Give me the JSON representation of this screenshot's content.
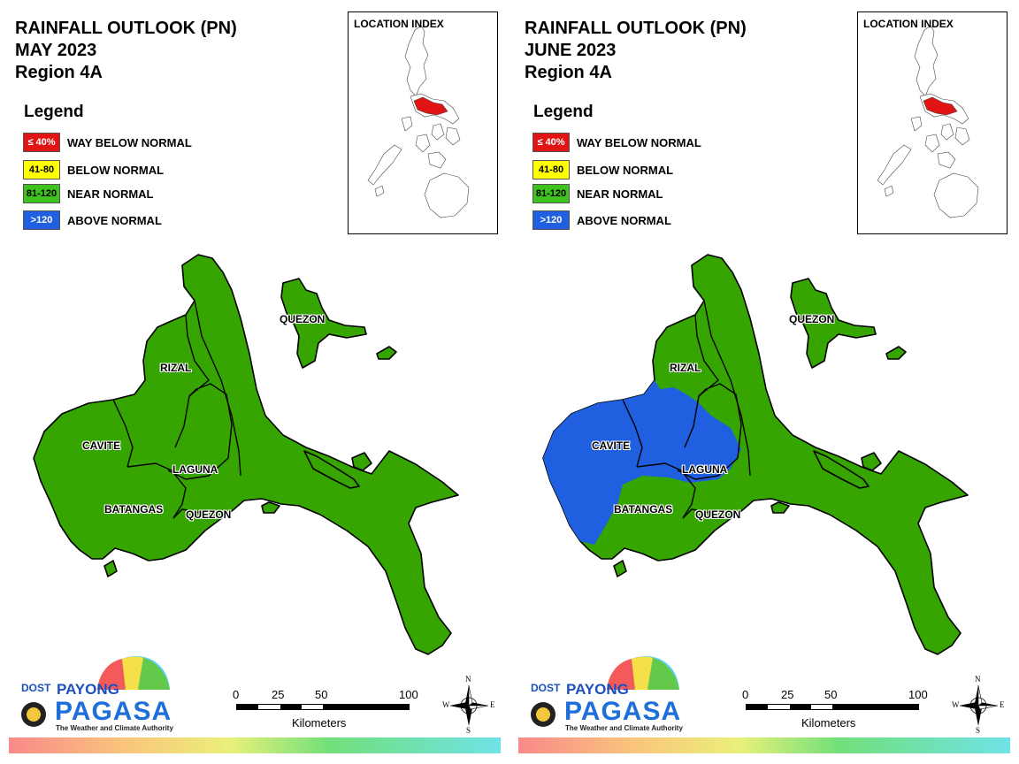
{
  "panels": [
    {
      "title_line1": "RAINFALL OUTLOOK (PN)",
      "title_line2": "MAY 2023",
      "title_line3": "Region 4A",
      "legend_title": "Legend",
      "legend": [
        {
          "box": "≤ 40%",
          "label": "WAY BELOW NORMAL",
          "color": "#e21313",
          "text_color": "#ffffff"
        },
        {
          "box": "41-80",
          "label": "BELOW NORMAL",
          "color": "#ffff00",
          "text_color": "#000000"
        },
        {
          "box": "81-120",
          "label": "NEAR NORMAL",
          "color": "#3ec21e",
          "text_color": "#000000"
        },
        {
          "box": ">120",
          "label": "ABOVE NORMAL",
          "color": "#1f5fe0",
          "text_color": "#ffffff"
        }
      ],
      "inset_title": "LOCATION INDEX",
      "provinces": {
        "quezon_north": "QUEZON",
        "rizal": "RIZAL",
        "cavite": "CAVITE",
        "laguna": "LAGUNA",
        "batangas": "BATANGAS",
        "quezon_south": "QUEZON"
      },
      "category_colors": {
        "base": "#36a502",
        "above_normal_area": "#36a502"
      },
      "logo": {
        "dost": "DOST",
        "payong": "PAYONG",
        "pagasa": "PAGASA",
        "tagline": "The Weather and Climate Authority"
      },
      "scale": {
        "ticks": [
          "0",
          "25",
          "50",
          "100"
        ],
        "units": "Kilometers"
      },
      "compass": {
        "n": "N",
        "s": "S",
        "e": "E",
        "w": "W"
      }
    },
    {
      "title_line1": "RAINFALL OUTLOOK (PN)",
      "title_line2": "JUNE 2023",
      "title_line3": "Region 4A",
      "legend_title": "Legend",
      "legend": [
        {
          "box": "≤ 40%",
          "label": "WAY BELOW NORMAL",
          "color": "#e21313",
          "text_color": "#ffffff"
        },
        {
          "box": "41-80",
          "label": "BELOW NORMAL",
          "color": "#ffff00",
          "text_color": "#000000"
        },
        {
          "box": "81-120",
          "label": "NEAR NORMAL",
          "color": "#3ec21e",
          "text_color": "#000000"
        },
        {
          "box": ">120",
          "label": "ABOVE NORMAL",
          "color": "#1f5fe0",
          "text_color": "#ffffff"
        }
      ],
      "inset_title": "LOCATION INDEX",
      "provinces": {
        "quezon_north": "QUEZON",
        "rizal": "RIZAL",
        "cavite": "CAVITE",
        "laguna": "LAGUNA",
        "batangas": "BATANGAS",
        "quezon_south": "QUEZON"
      },
      "category_colors": {
        "base": "#36a502",
        "above_normal_area": "#1f5fe0"
      },
      "logo": {
        "dost": "DOST",
        "payong": "PAYONG",
        "pagasa": "PAGASA",
        "tagline": "The Weather and Climate Authority"
      },
      "scale": {
        "ticks": [
          "0",
          "25",
          "50",
          "100"
        ],
        "units": "Kilometers"
      },
      "compass": {
        "n": "N",
        "s": "S",
        "e": "E",
        "w": "W"
      }
    }
  ]
}
